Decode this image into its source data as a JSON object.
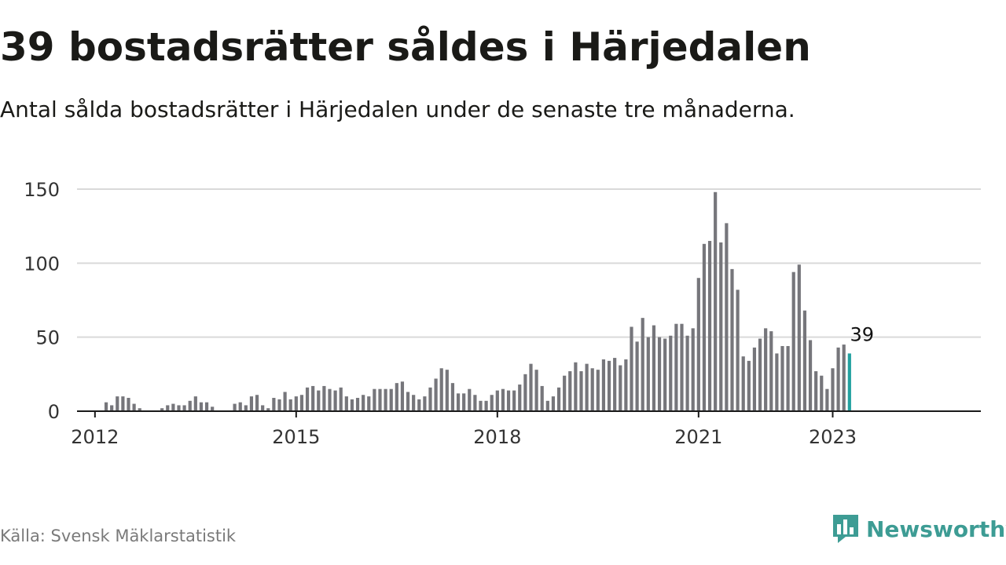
{
  "title": "39 bostadsrätter såldes i Härjedalen",
  "subtitle": "Antal sålda bostadsrätter i Härjedalen under de senaste tre månaderna.",
  "source": "Källa: Svensk Mäklarstatistik",
  "brand": {
    "name": "Newsworthy",
    "icon": "newsworthy-logo-icon",
    "color": "#3d9c94"
  },
  "chart_data": {
    "type": "bar",
    "x_start": "2011-10",
    "x_tick_labels": [
      "2012",
      "2015",
      "2018",
      "2021",
      "2023"
    ],
    "y_tick_labels": [
      "0",
      "50",
      "100",
      "150"
    ],
    "ylim": [
      0,
      150
    ],
    "grid": true,
    "bar_color": "#76767b",
    "highlight_color": "#22a1a0",
    "highlight_label": "39",
    "values": [
      null,
      null,
      null,
      null,
      null,
      6,
      4,
      10,
      10,
      9,
      5,
      2,
      null,
      null,
      null,
      2,
      4,
      5,
      4,
      4,
      7,
      10,
      6,
      6,
      3,
      null,
      null,
      null,
      5,
      6,
      4,
      10,
      11,
      4,
      2,
      9,
      8,
      13,
      8,
      10,
      11,
      16,
      17,
      14,
      17,
      15,
      14,
      16,
      10,
      8,
      9,
      11,
      10,
      15,
      15,
      15,
      15,
      19,
      20,
      13,
      11,
      8,
      10,
      16,
      22,
      29,
      28,
      19,
      12,
      12,
      15,
      11,
      7,
      7,
      11,
      14,
      15,
      14,
      14,
      18,
      25,
      32,
      28,
      17,
      7,
      10,
      16,
      24,
      27,
      33,
      27,
      32,
      29,
      28,
      35,
      34,
      36,
      31,
      35,
      57,
      47,
      63,
      50,
      58,
      50,
      49,
      51,
      59,
      59,
      51,
      56,
      90,
      113,
      115,
      148,
      114,
      127,
      96,
      82,
      37,
      34,
      43,
      49,
      56,
      54,
      39,
      44,
      44,
      94,
      99,
      68,
      48,
      27,
      24,
      15,
      29,
      43,
      45,
      39
    ]
  }
}
